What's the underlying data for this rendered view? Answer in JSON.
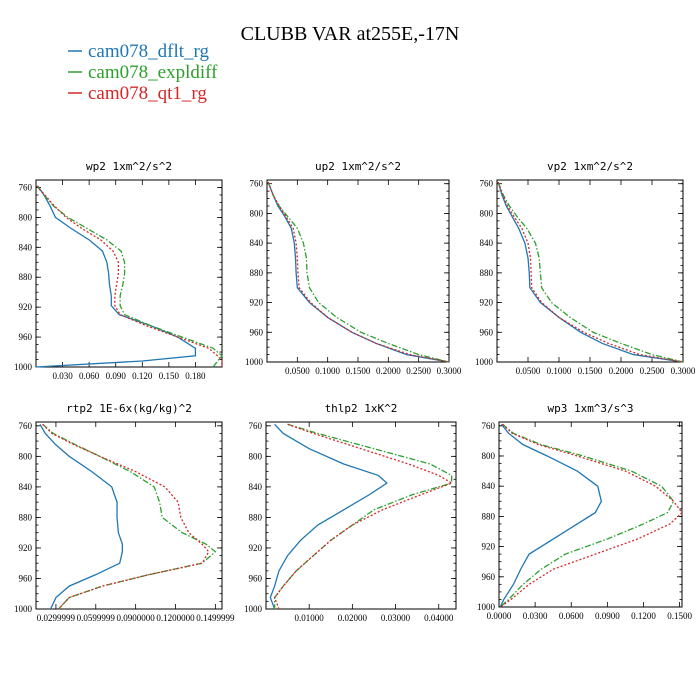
{
  "figure": {
    "title": "CLUBB VAR at255E,-17N"
  },
  "legend": [
    {
      "label": "cam078_dflt_rg",
      "color": "#1f77b4",
      "dash": "solid"
    },
    {
      "label": "cam078_expldiff",
      "color": "#2ca02c",
      "dash": "dashdot"
    },
    {
      "label": "cam078_qt1_rg",
      "color": "#d62728",
      "dash": "dotted"
    }
  ],
  "chart_data": [
    {
      "type": "line",
      "title": "wp2  1xm^2/s^2",
      "ylim": [
        1000,
        750
      ],
      "yticks": [
        760,
        800,
        840,
        880,
        920,
        960,
        1000
      ],
      "ytick_labels": [
        "760",
        "800",
        "840",
        "880",
        "920",
        "960",
        "1000"
      ],
      "xlim": [
        0.0,
        0.21
      ],
      "xticks": [
        0.03,
        0.06,
        0.09,
        0.12,
        0.15,
        0.18
      ],
      "xtick_labels": [
        "0.030",
        "0.060",
        "0.090",
        "0.120",
        "0.150",
        "0.180"
      ],
      "y": [
        758,
        770,
        785,
        800,
        815,
        830,
        845,
        860,
        875,
        890,
        905,
        918,
        930,
        945,
        960,
        975,
        985,
        992,
        1000
      ],
      "series": [
        {
          "name": "cam078_dflt_rg",
          "color": "#1f77b4",
          "dash": "solid",
          "values": [
            0.002,
            0.009,
            0.016,
            0.022,
            0.04,
            0.06,
            0.075,
            0.08,
            0.082,
            0.083,
            0.085,
            0.085,
            0.094,
            0.13,
            0.16,
            0.18,
            0.18,
            0.12,
            0.0
          ]
        },
        {
          "name": "cam078_expldiff",
          "color": "#2ca02c",
          "dash": "dashdot",
          "values": [
            0.001,
            0.009,
            0.02,
            0.036,
            0.058,
            0.08,
            0.096,
            0.1,
            0.1,
            0.098,
            0.095,
            0.095,
            0.1,
            0.13,
            0.165,
            0.2,
            0.21,
            0.205,
            0.2
          ]
        },
        {
          "name": "cam078_qt1_rg",
          "color": "#d62728",
          "dash": "dotted",
          "values": [
            0.001,
            0.01,
            0.021,
            0.034,
            0.052,
            0.073,
            0.087,
            0.093,
            0.093,
            0.091,
            0.089,
            0.089,
            0.095,
            0.125,
            0.16,
            0.195,
            0.205,
            0.21,
            0.21
          ]
        }
      ]
    },
    {
      "type": "line",
      "title": "up2  1xm^2/s^2",
      "ylim": [
        1000,
        755
      ],
      "yticks": [
        760,
        800,
        840,
        880,
        920,
        960,
        1000
      ],
      "ytick_labels": [
        "760",
        "800",
        "840",
        "880",
        "920",
        "960",
        "1000"
      ],
      "xlim": [
        0.0,
        0.3
      ],
      "xticks": [
        0.05,
        0.1,
        0.15,
        0.2,
        0.25,
        0.3
      ],
      "xtick_labels": [
        "0.0500",
        "0.1000",
        "0.1500",
        "0.2000",
        "0.2500",
        "0.3000"
      ],
      "y": [
        758,
        775,
        790,
        805,
        820,
        840,
        860,
        880,
        900,
        920,
        940,
        960,
        975,
        990,
        1000
      ],
      "series": [
        {
          "name": "cam078_dflt_rg",
          "color": "#1f77b4",
          "dash": "solid",
          "values": [
            0.002,
            0.01,
            0.018,
            0.03,
            0.04,
            0.045,
            0.047,
            0.048,
            0.05,
            0.07,
            0.1,
            0.14,
            0.18,
            0.23,
            0.3
          ]
        },
        {
          "name": "cam078_expldiff",
          "color": "#2ca02c",
          "dash": "dashdot",
          "values": [
            0.002,
            0.01,
            0.02,
            0.035,
            0.05,
            0.06,
            0.065,
            0.066,
            0.07,
            0.085,
            0.115,
            0.155,
            0.2,
            0.25,
            0.3
          ]
        },
        {
          "name": "cam078_qt1_rg",
          "color": "#d62728",
          "dash": "dotted",
          "values": [
            0.002,
            0.01,
            0.02,
            0.032,
            0.043,
            0.048,
            0.05,
            0.051,
            0.053,
            0.072,
            0.1,
            0.14,
            0.18,
            0.235,
            0.3
          ]
        }
      ]
    },
    {
      "type": "line",
      "title": "vp2  1xm^2/s^2",
      "ylim": [
        1000,
        755
      ],
      "yticks": [
        760,
        800,
        840,
        880,
        920,
        960,
        1000
      ],
      "ytick_labels": [
        "760",
        "800",
        "840",
        "880",
        "920",
        "960",
        "1000"
      ],
      "xlim": [
        0.0,
        0.3
      ],
      "xticks": [
        0.05,
        0.1,
        0.15,
        0.2,
        0.25,
        0.3
      ],
      "xtick_labels": [
        "0.0500",
        "0.1000",
        "0.1500",
        "0.2000",
        "0.2500",
        "0.3000"
      ],
      "y": [
        758,
        775,
        790,
        805,
        820,
        840,
        860,
        880,
        900,
        920,
        940,
        960,
        975,
        990,
        1000
      ],
      "series": [
        {
          "name": "cam078_dflt_rg",
          "color": "#1f77b4",
          "dash": "solid",
          "values": [
            0.002,
            0.008,
            0.015,
            0.025,
            0.035,
            0.045,
            0.05,
            0.052,
            0.053,
            0.07,
            0.1,
            0.135,
            0.17,
            0.22,
            0.3
          ]
        },
        {
          "name": "cam078_expldiff",
          "color": "#2ca02c",
          "dash": "dashdot",
          "values": [
            0.002,
            0.01,
            0.02,
            0.033,
            0.048,
            0.062,
            0.068,
            0.07,
            0.072,
            0.088,
            0.118,
            0.155,
            0.2,
            0.25,
            0.3
          ]
        },
        {
          "name": "cam078_qt1_rg",
          "color": "#d62728",
          "dash": "dotted",
          "values": [
            0.002,
            0.009,
            0.017,
            0.028,
            0.04,
            0.05,
            0.054,
            0.055,
            0.056,
            0.072,
            0.1,
            0.14,
            0.18,
            0.23,
            0.3
          ]
        }
      ]
    },
    {
      "type": "line",
      "title": "rtp2  1E-6x(kg/kg)^2",
      "ylim": [
        1000,
        755
      ],
      "yticks": [
        760,
        800,
        840,
        880,
        920,
        960,
        1000
      ],
      "ytick_labels": [
        "760",
        "800",
        "840",
        "880",
        "920",
        "960",
        "1000"
      ],
      "xlim": [
        0.015,
        0.155
      ],
      "xticks": [
        0.03,
        0.06,
        0.09,
        0.12,
        0.15
      ],
      "xtick_labels": [
        "0.0299999",
        "0.0599999",
        "0.0900000",
        "0.1200000",
        "0.1499999"
      ],
      "y": [
        758,
        770,
        785,
        800,
        820,
        840,
        860,
        880,
        900,
        915,
        925,
        940,
        955,
        970,
        985,
        1000
      ],
      "series": [
        {
          "name": "cam078_dflt_rg",
          "color": "#1f77b4",
          "dash": "solid",
          "values": [
            0.018,
            0.022,
            0.03,
            0.04,
            0.057,
            0.072,
            0.076,
            0.076,
            0.077,
            0.08,
            0.08,
            0.078,
            0.06,
            0.04,
            0.03,
            0.026
          ]
        },
        {
          "name": "cam078_expldiff",
          "color": "#2ca02c",
          "dash": "dashdot",
          "values": [
            0.02,
            0.028,
            0.045,
            0.063,
            0.086,
            0.104,
            0.108,
            0.11,
            0.125,
            0.143,
            0.15,
            0.14,
            0.1,
            0.065,
            0.04,
            0.032
          ]
        },
        {
          "name": "cam078_qt1_rg",
          "color": "#d62728",
          "dash": "dotted",
          "values": [
            0.02,
            0.027,
            0.044,
            0.063,
            0.09,
            0.112,
            0.122,
            0.124,
            0.13,
            0.14,
            0.145,
            0.14,
            0.1,
            0.065,
            0.04,
            0.032
          ]
        }
      ]
    },
    {
      "type": "line",
      "title": "thlp2  1xK^2",
      "ylim": [
        1000,
        755
      ],
      "yticks": [
        760,
        800,
        840,
        880,
        920,
        960,
        1000
      ],
      "ytick_labels": [
        "760",
        "800",
        "840",
        "880",
        "920",
        "960",
        "1000"
      ],
      "xlim": [
        0.0,
        0.044
      ],
      "xticks": [
        0.01,
        0.02,
        0.03,
        0.04
      ],
      "xtick_labels": [
        "0.01000",
        "0.02000",
        "0.03000",
        "0.04000"
      ],
      "y": [
        758,
        770,
        790,
        810,
        825,
        835,
        850,
        870,
        890,
        910,
        930,
        950,
        970,
        985,
        1000
      ],
      "series": [
        {
          "name": "cam078_dflt_rg",
          "color": "#1f77b4",
          "dash": "solid",
          "values": [
            0.002,
            0.004,
            0.01,
            0.018,
            0.026,
            0.028,
            0.024,
            0.018,
            0.012,
            0.008,
            0.005,
            0.003,
            0.002,
            0.001,
            0.002
          ]
        },
        {
          "name": "cam078_expldiff",
          "color": "#2ca02c",
          "dash": "dashdot",
          "values": [
            0.005,
            0.012,
            0.025,
            0.038,
            0.043,
            0.043,
            0.034,
            0.025,
            0.02,
            0.015,
            0.011,
            0.007,
            0.004,
            0.002,
            0.002
          ]
        },
        {
          "name": "cam078_qt1_rg",
          "color": "#d62728",
          "dash": "dotted",
          "values": [
            0.005,
            0.011,
            0.022,
            0.033,
            0.04,
            0.043,
            0.036,
            0.027,
            0.02,
            0.015,
            0.011,
            0.007,
            0.004,
            0.002,
            0.003
          ]
        }
      ]
    },
    {
      "type": "line",
      "title": "wp3  1xm^3/s^3",
      "ylim": [
        1000,
        755
      ],
      "yticks": [
        760,
        800,
        840,
        880,
        920,
        960,
        1000
      ],
      "ytick_labels": [
        "760",
        "800",
        "840",
        "880",
        "920",
        "960",
        "1000"
      ],
      "xlim": [
        0.0,
        0.152
      ],
      "xticks": [
        0.0,
        0.03,
        0.06,
        0.09,
        0.12,
        0.15
      ],
      "xtick_labels": [
        "0.0000",
        "0.0300",
        "0.0600",
        "0.0900",
        "0.1200",
        "0.1500"
      ],
      "y": [
        758,
        770,
        785,
        800,
        820,
        840,
        860,
        875,
        890,
        910,
        930,
        950,
        970,
        990,
        1000
      ],
      "series": [
        {
          "name": "cam078_dflt_rg",
          "color": "#1f77b4",
          "dash": "solid",
          "values": [
            0.002,
            0.008,
            0.02,
            0.04,
            0.065,
            0.082,
            0.085,
            0.08,
            0.065,
            0.045,
            0.025,
            0.018,
            0.012,
            0.004,
            0.001
          ]
        },
        {
          "name": "cam078_expldiff",
          "color": "#2ca02c",
          "dash": "dashdot",
          "values": [
            0.003,
            0.012,
            0.035,
            0.07,
            0.11,
            0.135,
            0.145,
            0.14,
            0.12,
            0.09,
            0.055,
            0.035,
            0.02,
            0.008,
            0.001
          ]
        },
        {
          "name": "cam078_qt1_rg",
          "color": "#d62728",
          "dash": "dotted",
          "values": [
            0.003,
            0.011,
            0.033,
            0.065,
            0.105,
            0.13,
            0.145,
            0.152,
            0.142,
            0.115,
            0.08,
            0.045,
            0.025,
            0.01,
            0.001
          ]
        }
      ]
    }
  ]
}
